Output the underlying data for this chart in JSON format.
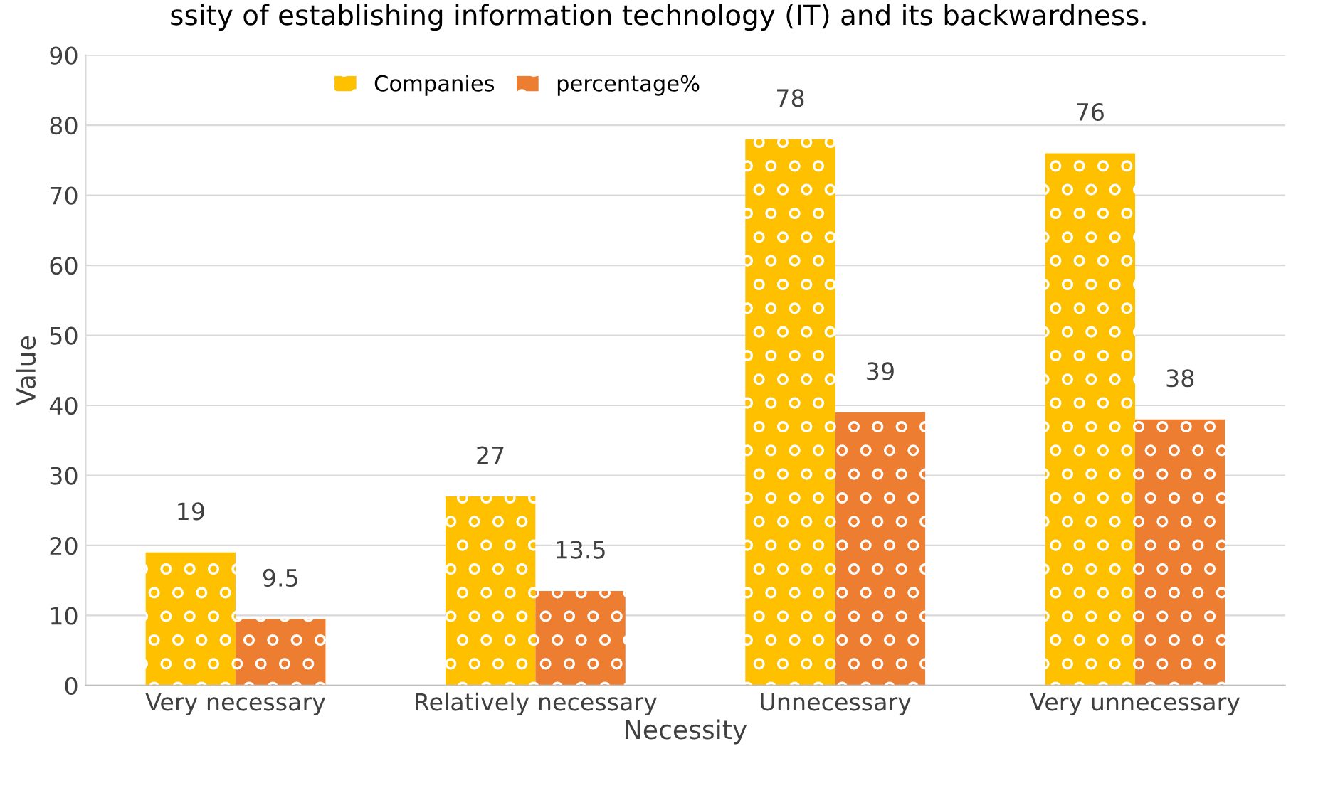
{
  "chart_data": {
    "type": "bar",
    "title": "ssity of establishing information technology (IT) and its backwardness.",
    "xlabel": "Necessity",
    "ylabel": "Value",
    "categories": [
      "Very necessary",
      "Relatively necessary",
      "Unnecessary",
      "Very unnecessary"
    ],
    "series": [
      {
        "name": "Companies",
        "color": "#ffc000",
        "values": [
          19,
          27,
          78,
          76
        ]
      },
      {
        "name": "percentage%",
        "color": "#ed7d31",
        "values": [
          9.5,
          13.5,
          39,
          38
        ]
      }
    ],
    "ylim": [
      0,
      90
    ],
    "yticks": [
      0,
      10,
      20,
      30,
      40,
      50,
      60,
      70,
      80,
      90
    ],
    "grid": "y",
    "legend": "top",
    "data_labels": true
  }
}
